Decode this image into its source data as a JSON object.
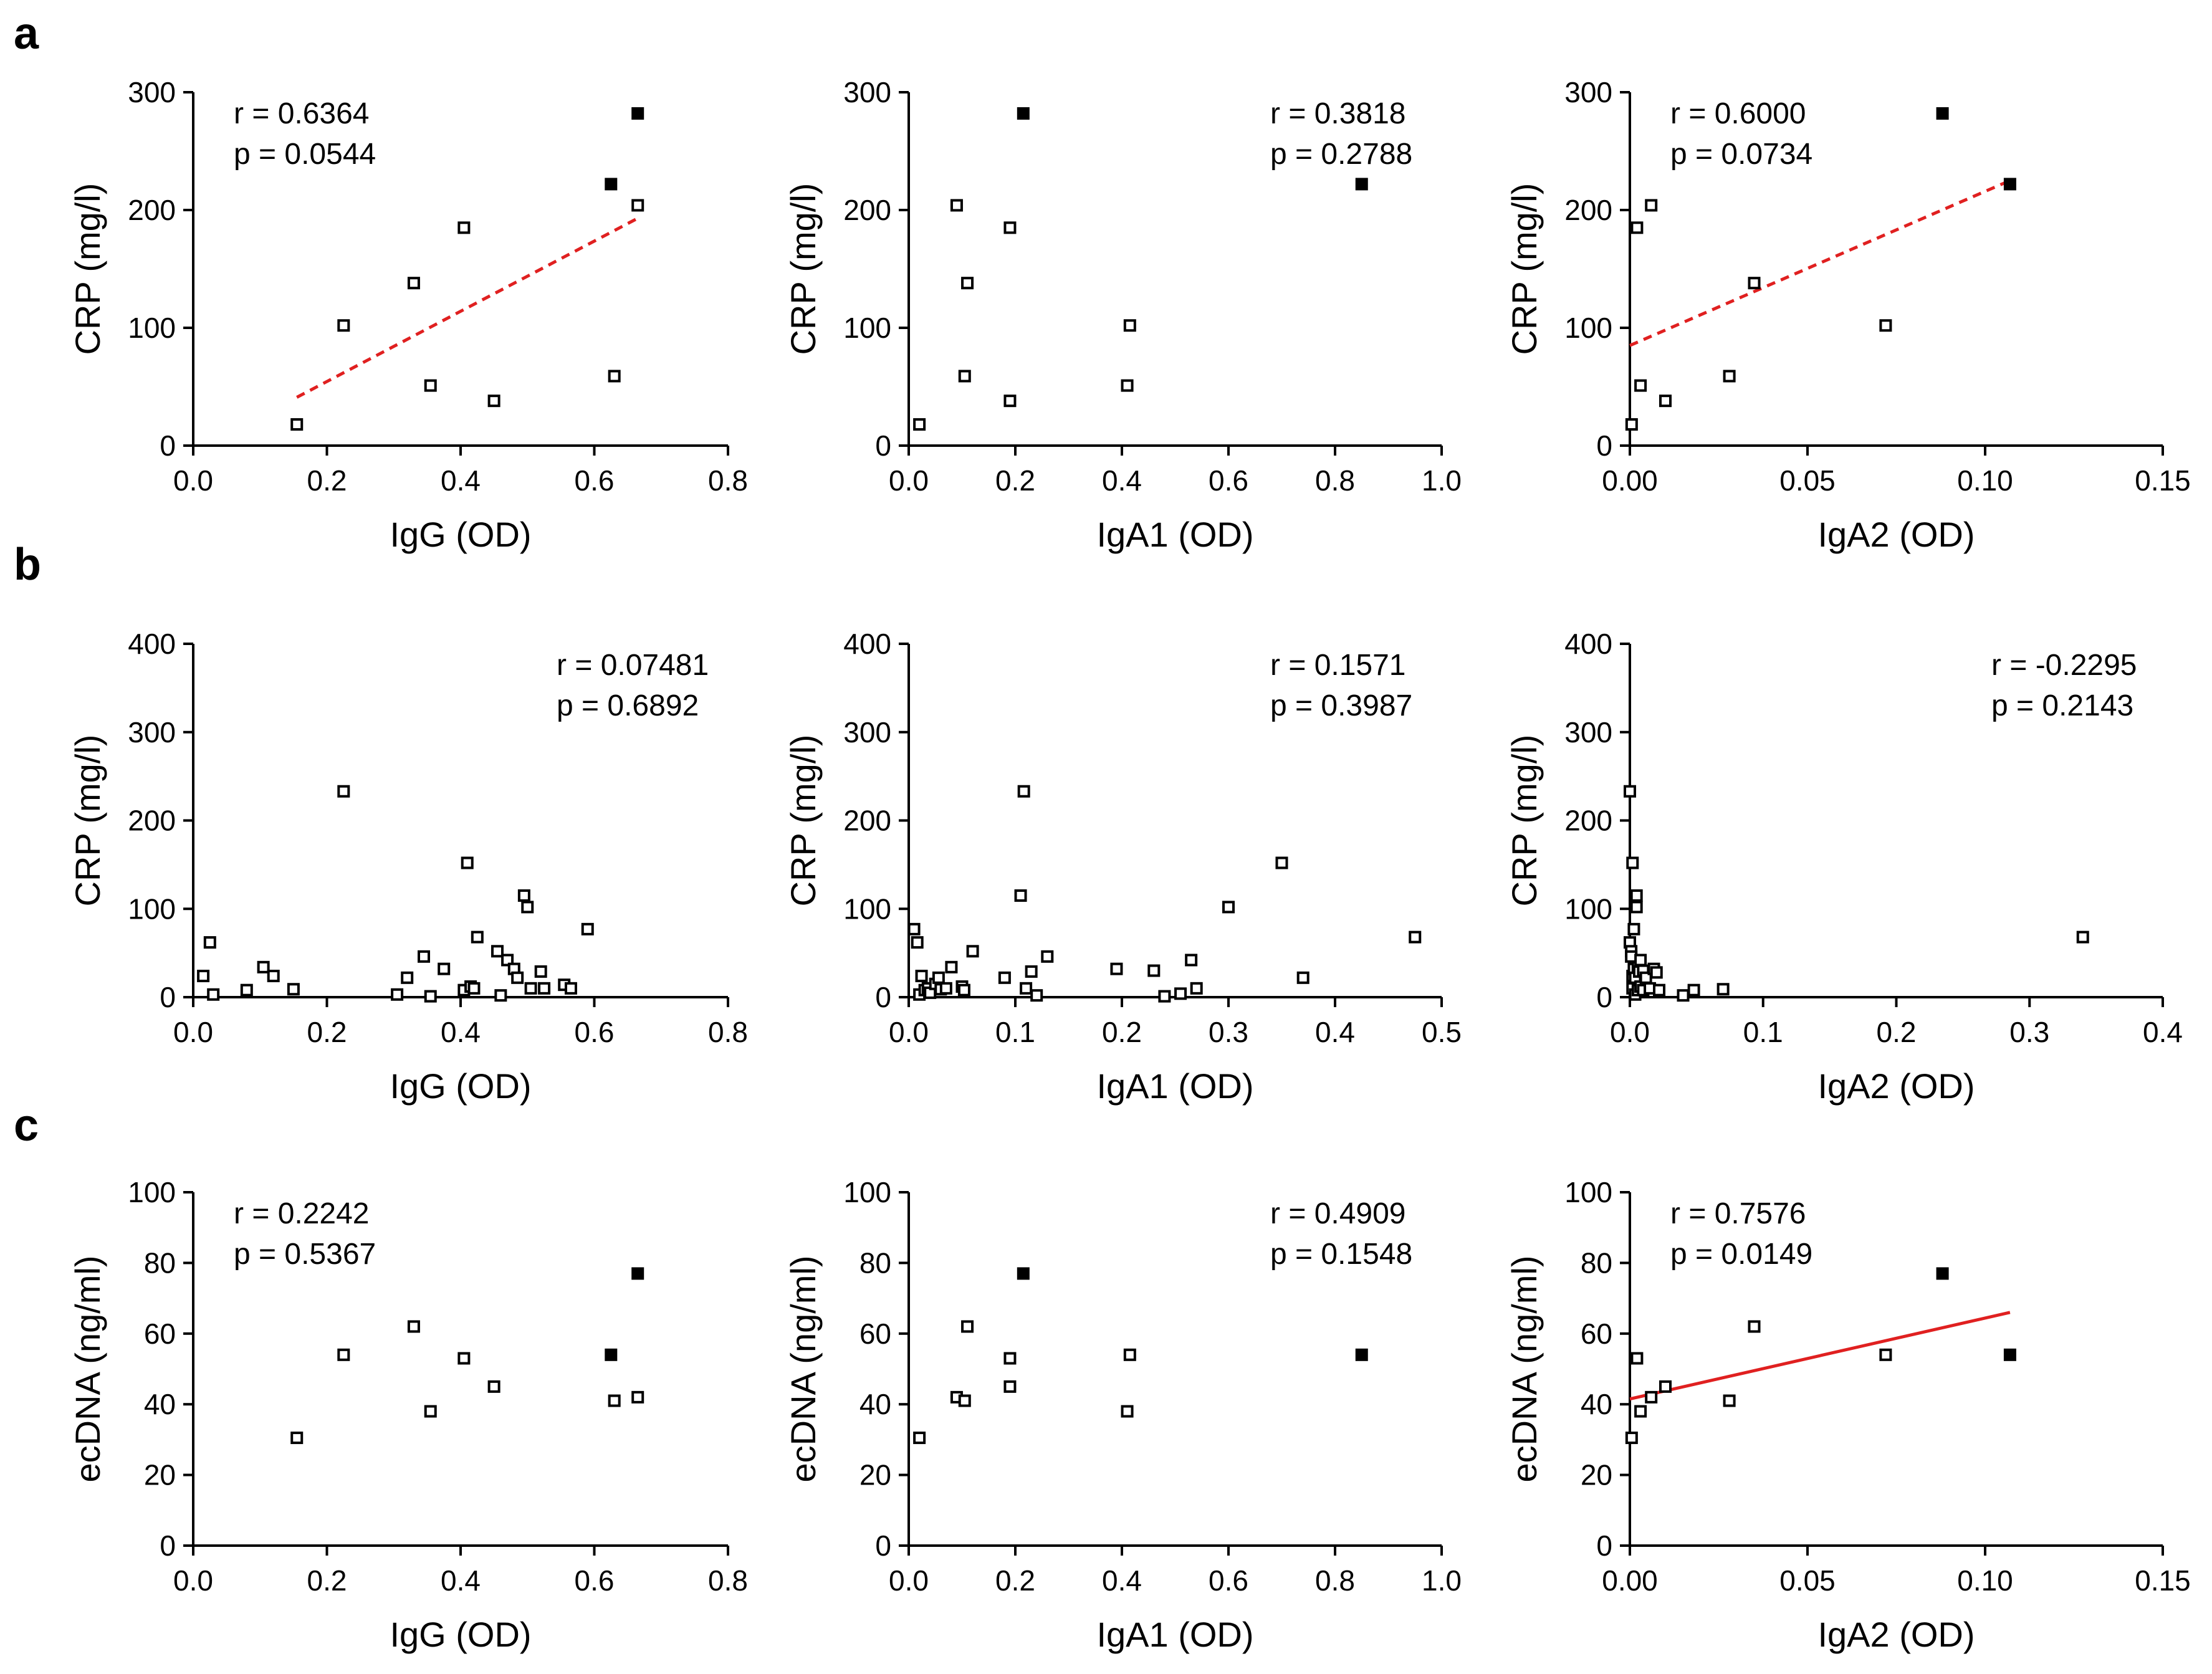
{
  "panels": [
    {
      "letter": "a"
    },
    {
      "letter": "b"
    },
    {
      "letter": "c"
    }
  ],
  "chart_data": [
    {
      "id": "a1",
      "panel": "a",
      "type": "scatter",
      "xlabel": "IgG (OD)",
      "ylabel": "CRP (mg/l)",
      "xlim": [
        0,
        0.8
      ],
      "ylim": [
        0,
        300
      ],
      "xticks": [
        0,
        0.2,
        0.4,
        0.6,
        0.8
      ],
      "xtick_labels": [
        "0.0",
        "0.2",
        "0.4",
        "0.6",
        "0.8"
      ],
      "yticks": [
        0,
        100,
        200,
        300
      ],
      "ytick_labels": [
        "0",
        "100",
        "200",
        "300"
      ],
      "stats": {
        "r": "r = 0.6364",
        "p": "p = 0.0544",
        "position": "top-left"
      },
      "series": [
        {
          "name": "open",
          "marker": "open-square",
          "x": [
            0.155,
            0.225,
            0.33,
            0.355,
            0.405,
            0.45,
            0.63,
            0.665
          ],
          "y": [
            18,
            102,
            138,
            51,
            185,
            38,
            59,
            204
          ]
        },
        {
          "name": "filled",
          "marker": "filled-square",
          "x": [
            0.625,
            0.665
          ],
          "y": [
            222,
            282
          ]
        }
      ],
      "trendline": {
        "x": [
          0.155,
          0.665
        ],
        "y": [
          41,
          193
        ],
        "style": "dashed",
        "color": "#e02020"
      }
    },
    {
      "id": "a2",
      "panel": "a",
      "type": "scatter",
      "xlabel": "IgA1 (OD)",
      "ylabel": "CRP (mg/l)",
      "xlim": [
        0,
        1.0
      ],
      "ylim": [
        0,
        300
      ],
      "xticks": [
        0,
        0.2,
        0.4,
        0.6,
        0.8,
        1.0
      ],
      "xtick_labels": [
        "0.0",
        "0.2",
        "0.4",
        "0.6",
        "0.8",
        "1.0"
      ],
      "yticks": [
        0,
        100,
        200,
        300
      ],
      "ytick_labels": [
        "0",
        "100",
        "200",
        "300"
      ],
      "stats": {
        "r": "r = 0.3818",
        "p": "p = 0.2788",
        "position": "top-right"
      },
      "series": [
        {
          "name": "open",
          "marker": "open-square",
          "x": [
            0.02,
            0.09,
            0.105,
            0.11,
            0.19,
            0.19,
            0.41,
            0.415
          ],
          "y": [
            18,
            204,
            59,
            138,
            185,
            38,
            51,
            102
          ]
        },
        {
          "name": "filled",
          "marker": "filled-square",
          "x": [
            0.215,
            0.85
          ],
          "y": [
            282,
            222
          ]
        }
      ]
    },
    {
      "id": "a3",
      "panel": "a",
      "type": "scatter",
      "xlabel": "IgA2 (OD)",
      "ylabel": "CRP (mg/l)",
      "xlim": [
        0,
        0.15
      ],
      "ylim": [
        0,
        300
      ],
      "xticks": [
        0,
        0.05,
        0.1,
        0.15
      ],
      "xtick_labels": [
        "0.00",
        "0.05",
        "0.10",
        "0.15"
      ],
      "yticks": [
        0,
        100,
        200,
        300
      ],
      "ytick_labels": [
        "0",
        "100",
        "200",
        "300"
      ],
      "stats": {
        "r": "r = 0.6000",
        "p": "p = 0.0734",
        "position": "top-left"
      },
      "series": [
        {
          "name": "open",
          "marker": "open-square",
          "x": [
            0.0005,
            0.002,
            0.003,
            0.006,
            0.01,
            0.028,
            0.035,
            0.072
          ],
          "y": [
            18,
            185,
            51,
            204,
            38,
            59,
            138,
            102
          ]
        },
        {
          "name": "filled",
          "marker": "filled-square",
          "x": [
            0.088,
            0.107
          ],
          "y": [
            282,
            222
          ]
        }
      ],
      "trendline": {
        "x": [
          0,
          0.107
        ],
        "y": [
          85,
          225
        ],
        "style": "dashed",
        "color": "#e02020"
      }
    },
    {
      "id": "b1",
      "panel": "b",
      "type": "scatter",
      "xlabel": "IgG (OD)",
      "ylabel": "CRP (mg/l)",
      "xlim": [
        0,
        0.8
      ],
      "ylim": [
        0,
        400
      ],
      "xticks": [
        0,
        0.2,
        0.4,
        0.6,
        0.8
      ],
      "xtick_labels": [
        "0.0",
        "0.2",
        "0.4",
        "0.6",
        "0.8"
      ],
      "yticks": [
        0,
        100,
        200,
        300,
        400
      ],
      "ytick_labels": [
        "0",
        "100",
        "200",
        "300",
        "400"
      ],
      "stats": {
        "r": "r = 0.07481",
        "p": "p = 0.6892",
        "position": "top-right"
      },
      "series": [
        {
          "name": "open",
          "marker": "open-square",
          "x": [
            0.015,
            0.025,
            0.03,
            0.08,
            0.105,
            0.12,
            0.15,
            0.225,
            0.305,
            0.32,
            0.345,
            0.355,
            0.375,
            0.405,
            0.41,
            0.415,
            0.42,
            0.425,
            0.455,
            0.46,
            0.47,
            0.48,
            0.485,
            0.495,
            0.5,
            0.505,
            0.52,
            0.525,
            0.555,
            0.565,
            0.59
          ],
          "y": [
            24,
            62,
            3,
            8,
            34,
            24,
            9,
            233,
            3,
            22,
            46,
            1,
            32,
            8,
            152,
            12,
            10,
            68,
            52,
            2,
            42,
            32,
            22,
            115,
            102,
            10,
            29,
            10,
            14,
            10,
            77
          ]
        }
      ]
    },
    {
      "id": "b2",
      "panel": "b",
      "type": "scatter",
      "xlabel": "IgA1 (OD)",
      "ylabel": "CRP (mg/l)",
      "xlim": [
        0,
        0.5
      ],
      "ylim": [
        0,
        400
      ],
      "xticks": [
        0,
        0.1,
        0.2,
        0.3,
        0.4,
        0.5
      ],
      "xtick_labels": [
        "0.0",
        "0.1",
        "0.2",
        "0.3",
        "0.4",
        "0.5"
      ],
      "yticks": [
        0,
        100,
        200,
        300,
        400
      ],
      "ytick_labels": [
        "0",
        "100",
        "200",
        "300",
        "400"
      ],
      "stats": {
        "r": "r = 0.1571",
        "p": "p = 0.3987",
        "position": "top-right"
      },
      "series": [
        {
          "name": "open",
          "marker": "open-square",
          "x": [
            0.005,
            0.008,
            0.01,
            0.012,
            0.015,
            0.018,
            0.02,
            0.025,
            0.028,
            0.03,
            0.035,
            0.04,
            0.05,
            0.052,
            0.06,
            0.09,
            0.105,
            0.108,
            0.11,
            0.115,
            0.12,
            0.13,
            0.195,
            0.23,
            0.24,
            0.255,
            0.265,
            0.27,
            0.3,
            0.35,
            0.37,
            0.475
          ],
          "y": [
            77,
            62,
            3,
            24,
            8,
            10,
            5,
            15,
            22,
            9,
            10,
            34,
            12,
            8,
            52,
            22,
            115,
            233,
            10,
            29,
            2,
            46,
            32,
            30,
            1,
            4,
            42,
            10,
            102,
            152,
            22,
            68
          ]
        }
      ]
    },
    {
      "id": "b3",
      "panel": "b",
      "type": "scatter",
      "xlabel": "IgA2 (OD)",
      "ylabel": "CRP (mg/l)",
      "xlim": [
        0,
        0.4
      ],
      "ylim": [
        0,
        400
      ],
      "xticks": [
        0,
        0.1,
        0.2,
        0.3,
        0.4
      ],
      "xtick_labels": [
        "0.0",
        "0.1",
        "0.2",
        "0.3",
        "0.4"
      ],
      "yticks": [
        0,
        100,
        200,
        300,
        400
      ],
      "ytick_labels": [
        "0",
        "100",
        "200",
        "300",
        "400"
      ],
      "stats": {
        "r": "r = -0.2295",
        "p": "p = 0.2143",
        "position": "top-right"
      },
      "series": [
        {
          "name": "open",
          "marker": "open-square",
          "x": [
            0.0,
            0.0,
            0.001,
            0.001,
            0.002,
            0.002,
            0.002,
            0.003,
            0.003,
            0.004,
            0.004,
            0.005,
            0.005,
            0.006,
            0.006,
            0.007,
            0.008,
            0.008,
            0.01,
            0.01,
            0.012,
            0.015,
            0.018,
            0.02,
            0.022,
            0.04,
            0.048,
            0.07,
            0.34
          ],
          "y": [
            233,
            62,
            52,
            46,
            152,
            24,
            10,
            77,
            32,
            3,
            22,
            115,
            102,
            34,
            8,
            29,
            42,
            12,
            30,
            8,
            22,
            10,
            32,
            28,
            8,
            2,
            8,
            9,
            68
          ]
        }
      ]
    },
    {
      "id": "c1",
      "panel": "c",
      "type": "scatter",
      "xlabel": "IgG (OD)",
      "ylabel": "ecDNA (ng/ml)",
      "xlim": [
        0,
        0.8
      ],
      "ylim": [
        0,
        100
      ],
      "xticks": [
        0,
        0.2,
        0.4,
        0.6,
        0.8
      ],
      "xtick_labels": [
        "0.0",
        "0.2",
        "0.4",
        "0.6",
        "0.8"
      ],
      "yticks": [
        0,
        20,
        40,
        60,
        80,
        100
      ],
      "ytick_labels": [
        "0",
        "20",
        "40",
        "60",
        "80",
        "100"
      ],
      "stats": {
        "r": "r = 0.2242",
        "p": "p = 0.5367",
        "position": "top-left"
      },
      "series": [
        {
          "name": "open",
          "marker": "open-square",
          "x": [
            0.155,
            0.225,
            0.33,
            0.355,
            0.405,
            0.45,
            0.63,
            0.665
          ],
          "y": [
            30.5,
            54,
            62,
            38,
            53,
            45,
            41,
            42
          ]
        },
        {
          "name": "filled",
          "marker": "filled-square",
          "x": [
            0.625,
            0.665
          ],
          "y": [
            54,
            77
          ]
        }
      ]
    },
    {
      "id": "c2",
      "panel": "c",
      "type": "scatter",
      "xlabel": "IgA1 (OD)",
      "ylabel": "ecDNA (ng/ml)",
      "xlim": [
        0,
        1.0
      ],
      "ylim": [
        0,
        100
      ],
      "xticks": [
        0,
        0.2,
        0.4,
        0.6,
        0.8,
        1.0
      ],
      "xtick_labels": [
        "0.0",
        "0.2",
        "0.4",
        "0.6",
        "0.8",
        "1.0"
      ],
      "yticks": [
        0,
        20,
        40,
        60,
        80,
        100
      ],
      "ytick_labels": [
        "0",
        "20",
        "40",
        "60",
        "80",
        "100"
      ],
      "stats": {
        "r": "r = 0.4909",
        "p": "p = 0.1548",
        "position": "top-right"
      },
      "series": [
        {
          "name": "open",
          "marker": "open-square",
          "x": [
            0.02,
            0.09,
            0.105,
            0.11,
            0.19,
            0.19,
            0.41,
            0.415
          ],
          "y": [
            30.5,
            42,
            41,
            62,
            53,
            45,
            38,
            54
          ]
        },
        {
          "name": "filled",
          "marker": "filled-square",
          "x": [
            0.215,
            0.85
          ],
          "y": [
            77,
            54
          ]
        }
      ]
    },
    {
      "id": "c3",
      "panel": "c",
      "type": "scatter",
      "xlabel": "IgA2 (OD)",
      "ylabel": "ecDNA (ng/ml)",
      "xlim": [
        0,
        0.15
      ],
      "ylim": [
        0,
        100
      ],
      "xticks": [
        0,
        0.05,
        0.1,
        0.15
      ],
      "xtick_labels": [
        "0.00",
        "0.05",
        "0.10",
        "0.15"
      ],
      "yticks": [
        0,
        20,
        40,
        60,
        80,
        100
      ],
      "ytick_labels": [
        "0",
        "20",
        "40",
        "60",
        "80",
        "100"
      ],
      "stats": {
        "r": "r = 0.7576",
        "p": "p = 0.0149",
        "position": "top-left"
      },
      "series": [
        {
          "name": "open",
          "marker": "open-square",
          "x": [
            0.0005,
            0.002,
            0.003,
            0.006,
            0.01,
            0.028,
            0.035,
            0.072
          ],
          "y": [
            30.5,
            53,
            38,
            42,
            45,
            41,
            62,
            54
          ]
        },
        {
          "name": "filled",
          "marker": "filled-square",
          "x": [
            0.088,
            0.107
          ],
          "y": [
            77,
            54
          ]
        }
      ],
      "trendline": {
        "x": [
          0,
          0.107
        ],
        "y": [
          41.5,
          66
        ],
        "style": "solid",
        "color": "#e02020"
      }
    }
  ]
}
